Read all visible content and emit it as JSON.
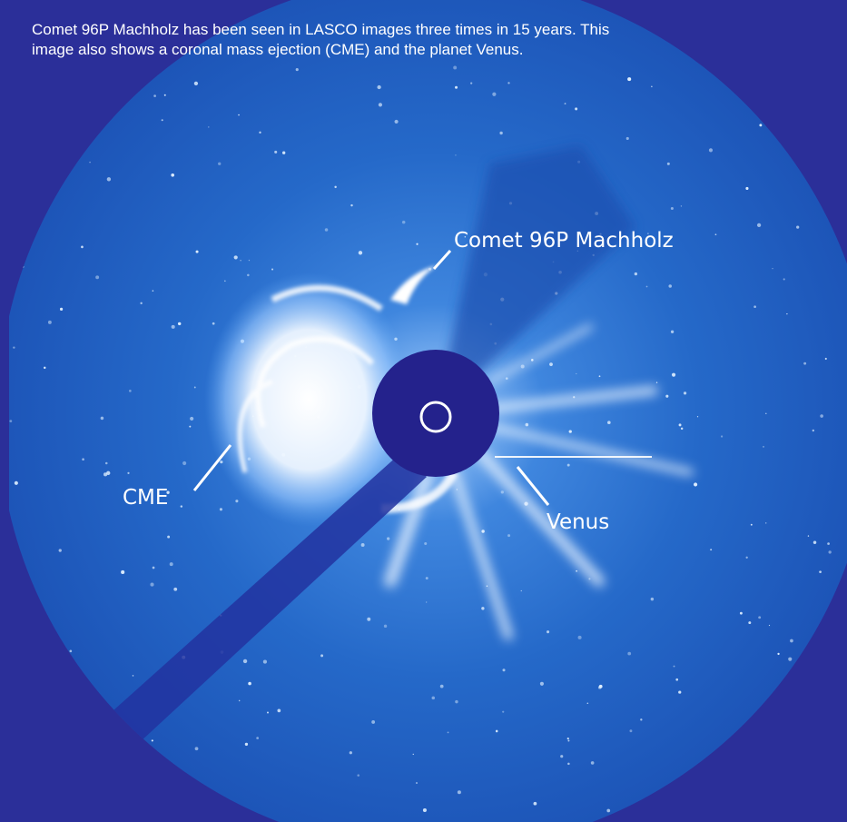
{
  "caption": {
    "lines": [
      "Comet 96P Machholz has been seen in LASCO images three times in 15 years. This",
      "image also shows a coronal mass ejection (CME) and the planet Venus."
    ]
  },
  "labels": {
    "comet": "Comet 96P Machholz",
    "cme": "CME",
    "venus": "Venus"
  }
}
